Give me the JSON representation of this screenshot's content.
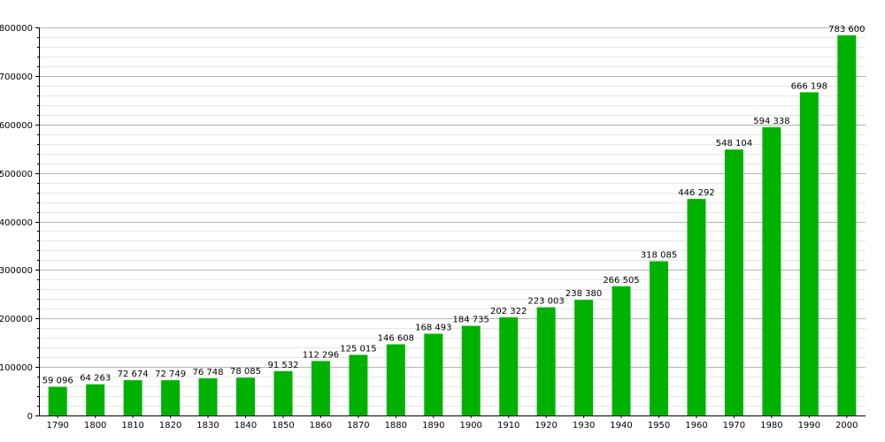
{
  "colors": {
    "bar": "#00b200",
    "major_grid": "#b4b4b4",
    "minor_grid": "#e6e6e6",
    "axis": "#000000",
    "background": "#ffffff"
  },
  "chart_data": {
    "type": "bar",
    "title": "",
    "xlabel": "",
    "ylabel": "",
    "ylim": [
      0,
      800000
    ],
    "y_ticks": [
      0,
      100000,
      200000,
      300000,
      400000,
      500000,
      600000,
      700000,
      800000
    ],
    "y_tick_labels": [
      "0",
      "100000",
      "200000",
      "300000",
      "400000",
      "500000",
      "600000",
      "700000",
      "800000"
    ],
    "y_minor_step": 20000,
    "grid": true,
    "legend": "none",
    "categories": [
      "1790",
      "1800",
      "1810",
      "1820",
      "1830",
      "1840",
      "1850",
      "1860",
      "1870",
      "1880",
      "1890",
      "1900",
      "1910",
      "1920",
      "1930",
      "1940",
      "1950",
      "1960",
      "1970",
      "1980",
      "1990",
      "2000"
    ],
    "values": [
      59096,
      64263,
      72674,
      72749,
      76748,
      78085,
      91532,
      112296,
      125015,
      146608,
      168493,
      184735,
      202322,
      223003,
      238380,
      266505,
      318085,
      446292,
      548104,
      594338,
      666198,
      783600
    ],
    "data_labels": [
      "59 096",
      "64 263",
      "72 674",
      "72 749",
      "76 748",
      "78 085",
      "91 532",
      "112 296",
      "125 015",
      "146 608",
      "168 493",
      "184 735",
      "202 322",
      "223 003",
      "238 380",
      "266 505",
      "318 085",
      "446 292",
      "548 104",
      "594 338",
      "666 198",
      "783 600"
    ]
  }
}
